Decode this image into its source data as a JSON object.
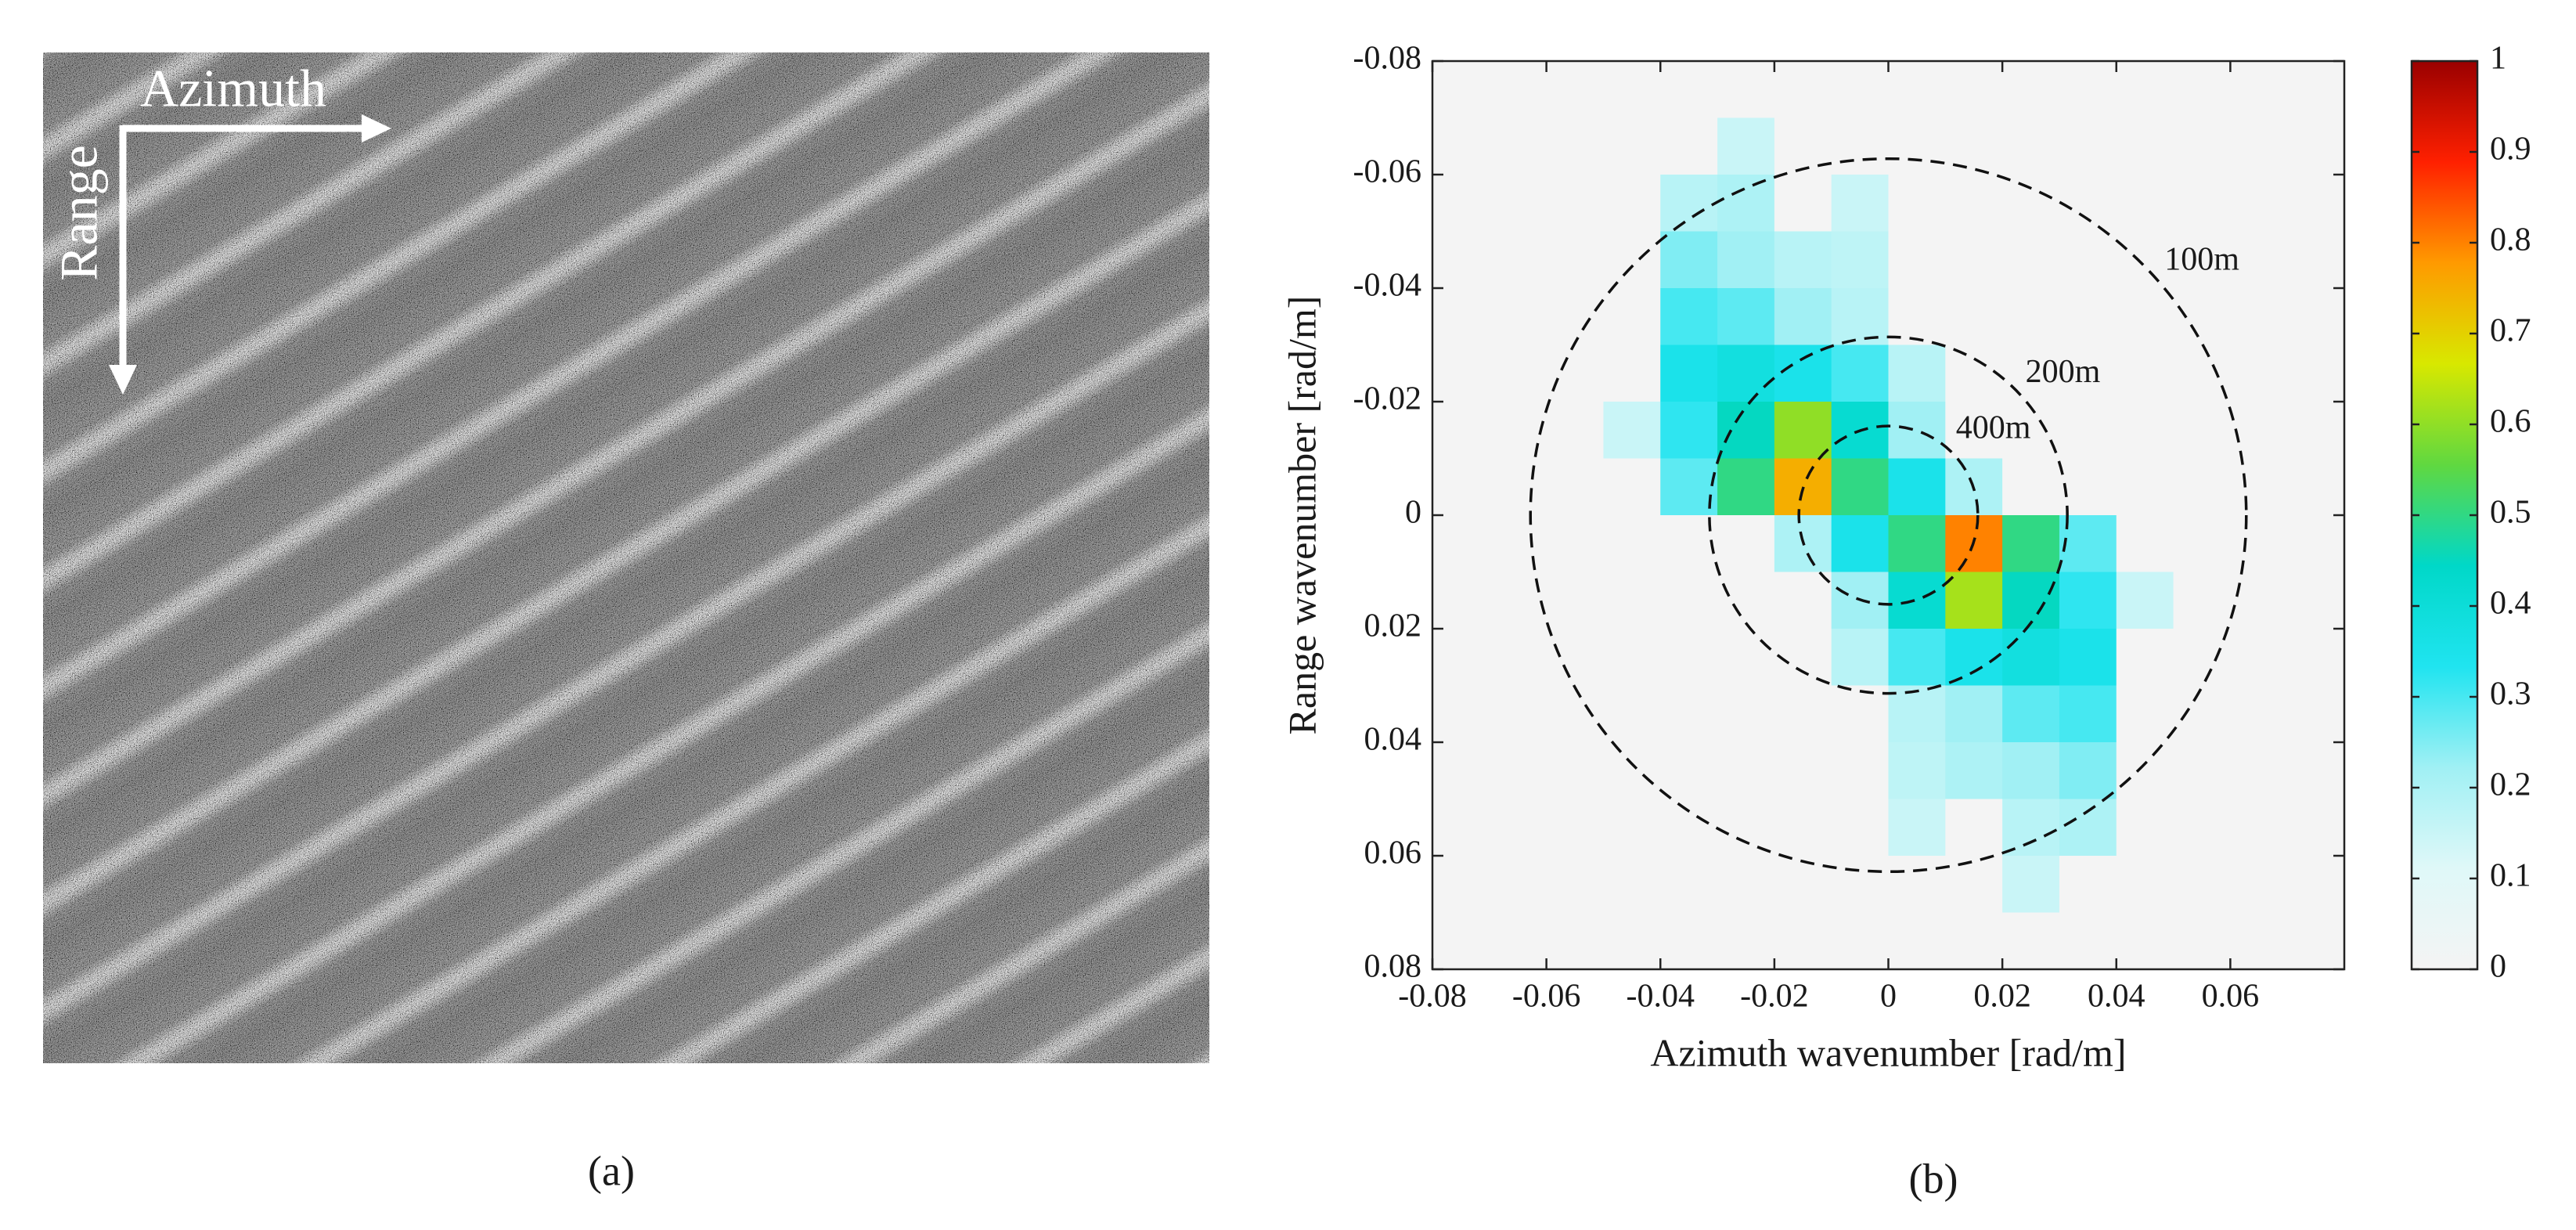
{
  "panel_a": {
    "azimuth_label": "Azimuth",
    "range_label": "Range",
    "caption": "(a)"
  },
  "chart_data": {
    "type": "heatmap",
    "caption": "(b)",
    "x_label": "Azimuth wavenumber [rad/m]",
    "y_label": "Range wavenumber [rad/m]",
    "xlim": [
      -0.08,
      0.08
    ],
    "ylim": [
      -0.08,
      0.08
    ],
    "y_reversed": true,
    "xticks": [
      -0.08,
      -0.06,
      -0.04,
      -0.02,
      0,
      0.02,
      0.04,
      0.06
    ],
    "yticks": [
      -0.08,
      -0.06,
      -0.04,
      -0.02,
      0,
      0.02,
      0.04,
      0.06,
      0.08
    ],
    "x": [
      -0.075,
      -0.065,
      -0.055,
      -0.045,
      -0.035,
      -0.025,
      -0.015,
      -0.005,
      0.005,
      0.015,
      0.025,
      0.035,
      0.045,
      0.055,
      0.065,
      0.075
    ],
    "y": [
      -0.075,
      -0.065,
      -0.055,
      -0.045,
      -0.035,
      -0.025,
      -0.015,
      -0.005,
      0.005,
      0.015,
      0.025,
      0.035,
      0.045,
      0.055,
      0.065,
      0.075
    ],
    "z": [
      [
        0,
        0,
        0,
        0,
        0,
        0,
        0,
        0,
        0,
        0,
        0,
        0,
        0,
        0,
        0,
        0
      ],
      [
        0,
        0,
        0,
        0,
        0,
        0.15,
        0,
        0,
        0,
        0,
        0,
        0,
        0,
        0,
        0,
        0
      ],
      [
        0,
        0,
        0,
        0,
        0.18,
        0.2,
        0,
        0.15,
        0,
        0,
        0,
        0,
        0,
        0,
        0,
        0
      ],
      [
        0,
        0,
        0,
        0,
        0.25,
        0.22,
        0.18,
        0.17,
        0,
        0,
        0,
        0,
        0,
        0,
        0,
        0
      ],
      [
        0,
        0,
        0,
        0,
        0.3,
        0.28,
        0.22,
        0.18,
        0,
        0,
        0,
        0,
        0,
        0,
        0,
        0
      ],
      [
        0,
        0,
        0,
        0,
        0.35,
        0.38,
        0.35,
        0.3,
        0.18,
        0,
        0,
        0,
        0,
        0,
        0,
        0
      ],
      [
        0,
        0,
        0,
        0.15,
        0.32,
        0.45,
        0.6,
        0.42,
        0.22,
        0,
        0,
        0,
        0,
        0,
        0,
        0
      ],
      [
        0,
        0,
        0,
        0,
        0.28,
        0.5,
        0.75,
        0.5,
        0.35,
        0.2,
        0,
        0,
        0,
        0,
        0,
        0
      ],
      [
        0,
        0,
        0,
        0,
        0,
        0,
        0.2,
        0.35,
        0.5,
        0.8,
        0.5,
        0.28,
        0,
        0,
        0,
        0
      ],
      [
        0,
        0,
        0,
        0,
        0,
        0,
        0,
        0.22,
        0.42,
        0.62,
        0.45,
        0.32,
        0.15,
        0,
        0,
        0
      ],
      [
        0,
        0,
        0,
        0,
        0,
        0,
        0,
        0.18,
        0.3,
        0.35,
        0.38,
        0.35,
        0,
        0,
        0,
        0
      ],
      [
        0,
        0,
        0,
        0,
        0,
        0,
        0,
        0,
        0.18,
        0.22,
        0.28,
        0.3,
        0,
        0,
        0,
        0
      ],
      [
        0,
        0,
        0,
        0,
        0,
        0,
        0,
        0,
        0.17,
        0.2,
        0.22,
        0.25,
        0,
        0,
        0,
        0
      ],
      [
        0,
        0,
        0,
        0,
        0,
        0,
        0,
        0,
        0.15,
        0,
        0.18,
        0.2,
        0,
        0,
        0,
        0
      ],
      [
        0,
        0,
        0,
        0,
        0,
        0,
        0,
        0,
        0,
        0,
        0.15,
        0,
        0,
        0,
        0,
        0
      ],
      [
        0,
        0,
        0,
        0,
        0,
        0,
        0,
        0,
        0,
        0,
        0,
        0,
        0,
        0,
        0,
        0
      ]
    ],
    "colormap": [
      "#f4f4f4",
      "#dff8f8",
      "#a0f0f4",
      "#20e4f0",
      "#00d8c8",
      "#60d840",
      "#d8e800",
      "#ff9a00",
      "#ff2000",
      "#9a0000"
    ],
    "colorbar": {
      "lim": [
        0,
        1
      ],
      "ticks": [
        0,
        0.1,
        0.2,
        0.3,
        0.4,
        0.5,
        0.6,
        0.7,
        0.8,
        0.9,
        1
      ]
    },
    "circles": [
      {
        "label": "100m",
        "radius": 0.0628
      },
      {
        "label": "200m",
        "radius": 0.0314
      },
      {
        "label": "400m",
        "radius": 0.0157
      }
    ]
  }
}
